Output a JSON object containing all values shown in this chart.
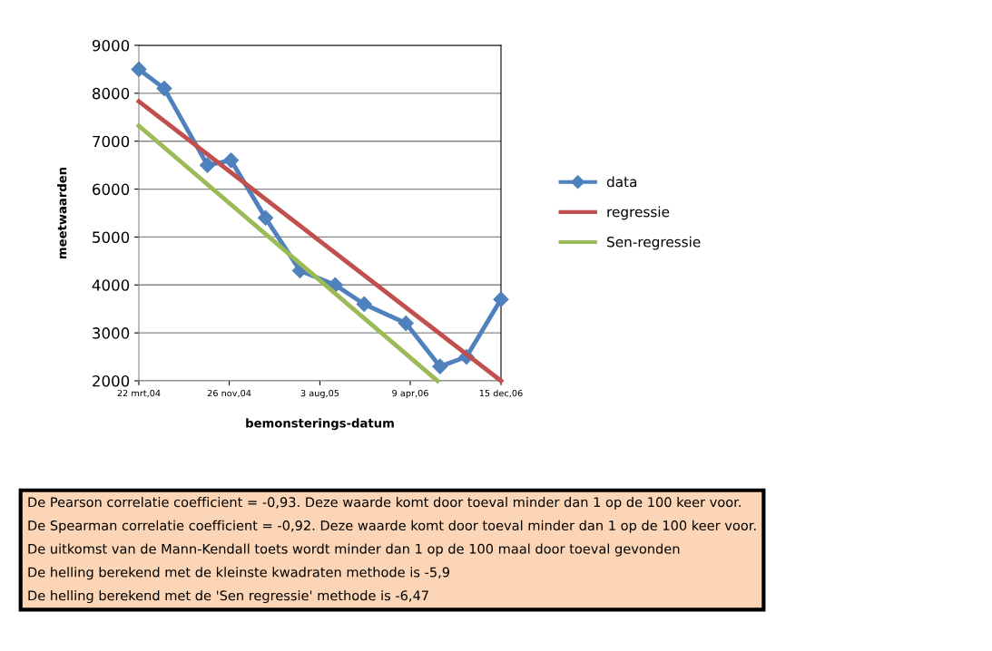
{
  "chart_data": {
    "type": "line",
    "xlabel": "bemonsterings-datum",
    "ylabel": "meetwaarden",
    "xlim": [
      "2004-03-22",
      "2006-12-15"
    ],
    "xticks": [
      {
        "value": "2004-03-22",
        "label": "22 mrt,04"
      },
      {
        "value": "2004-11-26",
        "label": "26 nov,04"
      },
      {
        "value": "2005-08-03",
        "label": "3 aug,05"
      },
      {
        "value": "2006-04-09",
        "label": "9 apr,06"
      },
      {
        "value": "2006-12-15",
        "label": "15 dec,06"
      }
    ],
    "ylim": [
      2000,
      9000
    ],
    "yticks": [
      2000,
      3000,
      4000,
      5000,
      6000,
      7000,
      8000,
      9000
    ],
    "grid": "y",
    "legend": "right",
    "series": [
      {
        "name": "data",
        "color": "#4f81bd",
        "marker": "diamond",
        "x": [
          "2004-03-22",
          "2004-05-31",
          "2004-09-27",
          "2004-12-01",
          "2005-03-06",
          "2005-06-09",
          "2005-09-14",
          "2005-12-03",
          "2006-03-28",
          "2006-06-30",
          "2006-09-11",
          "2006-12-15"
        ],
        "values": [
          8500,
          8100,
          6500,
          6600,
          5400,
          4300,
          4000,
          3600,
          3200,
          2300,
          2500,
          3700
        ]
      },
      {
        "name": "regressie",
        "color": "#c0504d",
        "marker": "none",
        "x": [
          "2004-03-22",
          "2006-12-15"
        ],
        "values": [
          7830,
          2000
        ]
      },
      {
        "name": "Sen-regressie",
        "color": "#9bbb59",
        "marker": "none",
        "x": [
          "2004-03-22",
          "2006-06-23"
        ],
        "values": [
          7320,
          2000
        ]
      }
    ],
    "annotations": [
      "De Pearson correlatie coefficient = -0,93. Deze waarde komt door toeval minder dan 1 op de 100 keer voor.",
      "De Spearman correlatie coefficient = -0,92. Deze waarde komt door toeval minder dan 1 op de 100 keer voor.",
      "De uitkomst van de Mann-Kendall toets wordt minder dan 1 op de 100 maal door toeval gevonden",
      "De helling berekend met de kleinste kwadraten methode is -5,9",
      "De helling berekend met de 'Sen regressie' methode is -6,47"
    ]
  }
}
